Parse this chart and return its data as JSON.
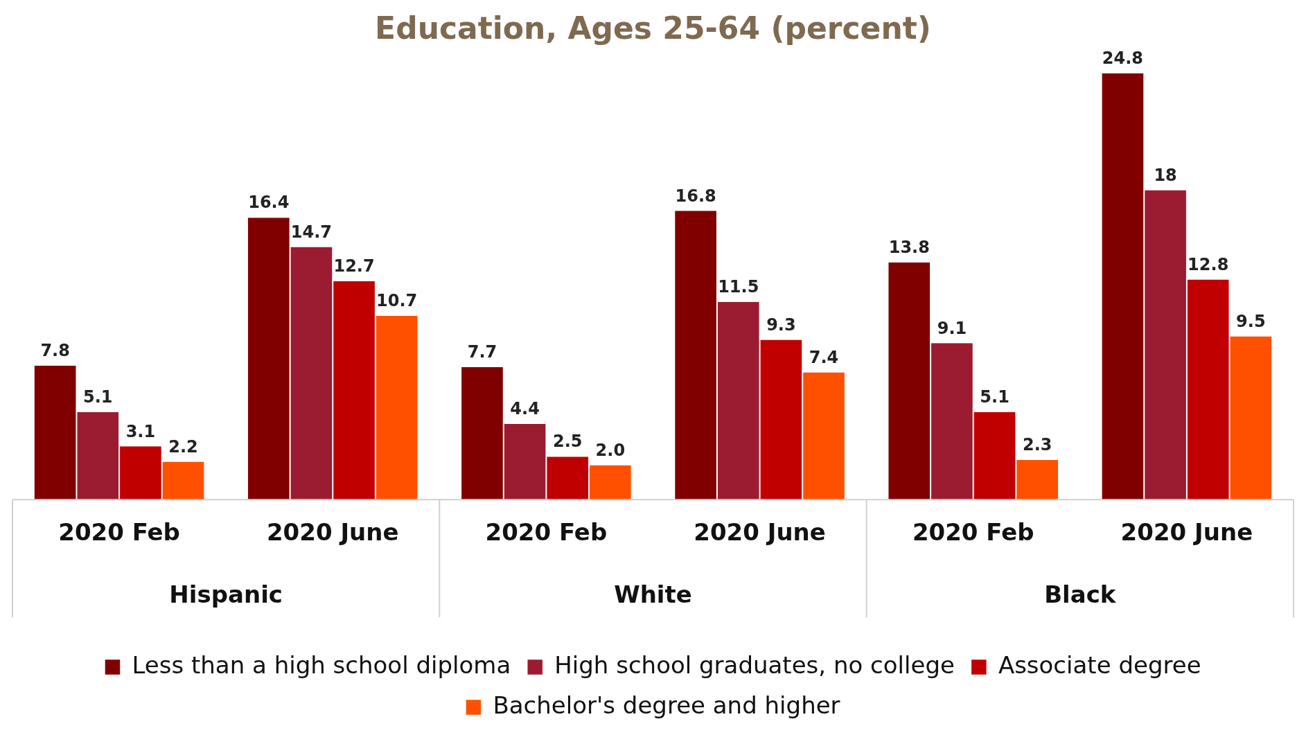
{
  "chart_data": {
    "type": "bar",
    "title": "Education, Ages 25-64 (percent)",
    "categories": [
      "2020 Feb",
      "2020 June",
      "2020 Feb",
      "2020 June",
      "2020 Feb",
      "2020 June"
    ],
    "annotations": [
      "Hispanic",
      "White",
      "Black"
    ],
    "series": [
      {
        "name": "Less than a high school diploma",
        "color": "#800000",
        "values": [
          7.8,
          16.4,
          7.7,
          16.8,
          13.8,
          24.8
        ],
        "value_labels": [
          "7.8",
          "16.4",
          "7.7",
          "16.8",
          "13.8",
          "24.8"
        ]
      },
      {
        "name": "High school graduates, no college",
        "color": "#9b1b30",
        "values": [
          5.1,
          14.7,
          4.4,
          11.5,
          9.1,
          18
        ],
        "value_labels": [
          "5.1",
          "14.7",
          "4.4",
          "11.5",
          "9.1",
          "18"
        ]
      },
      {
        "name": "Associate degree",
        "color": "#c00000",
        "values": [
          3.1,
          12.7,
          2.5,
          9.3,
          5.1,
          12.8
        ],
        "value_labels": [
          "3.1",
          "12.7",
          "2.5",
          "9.3",
          "5.1",
          "12.8"
        ]
      },
      {
        "name": "Bachelor's degree and higher",
        "color": "#ff5000",
        "values": [
          2.2,
          10.7,
          2.0,
          7.4,
          2.3,
          9.5
        ],
        "value_labels": [
          "2.2",
          "10.7",
          "2.0",
          "7.4",
          "2.3",
          "9.5"
        ]
      }
    ],
    "grid": false,
    "legend": "bottom"
  }
}
